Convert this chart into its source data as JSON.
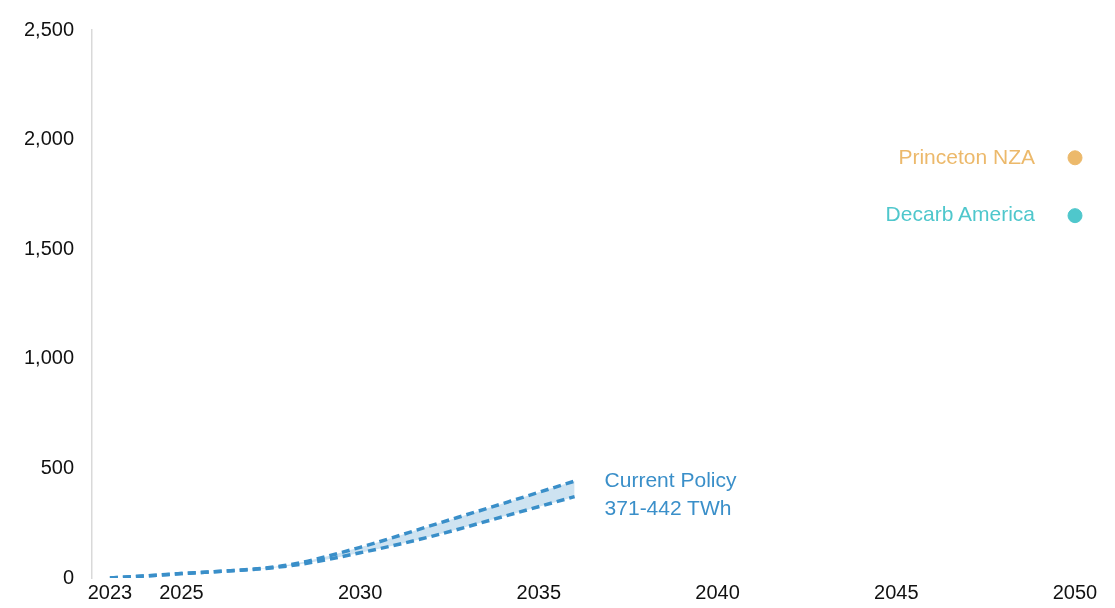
{
  "chart_data": {
    "type": "line",
    "xlim": [
      2022.5,
      2050
    ],
    "xticks": [
      2023,
      2025,
      2030,
      2035,
      2040,
      2045,
      2050
    ],
    "ylim": [
      0,
      2500
    ],
    "yticks": [
      0,
      500,
      {
        "value": 1000,
        "label": "1,000"
      },
      {
        "value": 1500,
        "label": "1,500"
      },
      {
        "value": 2000,
        "label": "2,000"
      },
      {
        "value": 2500,
        "label": "2,500"
      }
    ],
    "grid": false,
    "legend": false,
    "line_style": "dashed",
    "marker": "none",
    "series": [
      {
        "color": "#3a8fc9",
        "x": [
          2023,
          2025,
          2028,
          2030,
          2032,
          2034,
          2036
        ],
        "values": [
          0,
          20,
          60,
          140,
          240,
          340,
          442
        ],
        "lower": [
          0,
          20,
          55,
          115,
          190,
          280,
          371
        ],
        "upper": [
          0,
          20,
          60,
          140,
          240,
          340,
          442
        ]
      },
      {
        "color": "#3a8fc9",
        "x": [
          2023,
          2025,
          2028,
          2030,
          2032,
          2034,
          2036
        ],
        "values": [
          0,
          20,
          55,
          115,
          190,
          280,
          371
        ]
      },
      {
        "type": "scatter",
        "marker": "circle",
        "name": "Princeton NZA",
        "color": "#ecb96b",
        "x": [
          2050
        ],
        "values": [
          1917
        ]
      },
      {
        "type": "scatter",
        "marker": "circle",
        "name": "Decarb America",
        "color": "#4fc7cc",
        "x": [
          2050
        ],
        "values": [
          1653
        ]
      }
    ],
    "annotations": [
      {
        "text": "Current Policy\n371-442 TWh",
        "x": 2036,
        "y": 442
      }
    ]
  }
}
